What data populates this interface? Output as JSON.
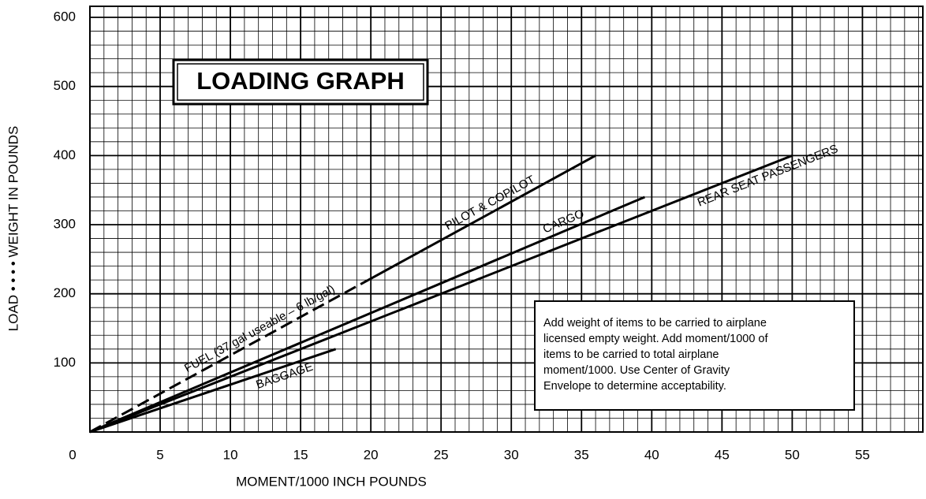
{
  "chart_data": {
    "type": "line",
    "title": "LOADING GRAPH",
    "x_label": "MOMENT/1000 INCH POUNDS",
    "y_label": "LOAD • • • • WEIGHT IN POUNDS",
    "note": [
      "Add weight of items to be carried to airplane",
      "licensed empty weight. Add moment/1000 of",
      "items to be carried to total airplane",
      "moment/1000. Use Center of Gravity",
      "Envelope to determine acceptability."
    ],
    "xlim": [
      0,
      59.3
    ],
    "ylim": [
      0,
      616
    ],
    "xticks": [
      0,
      5,
      10,
      15,
      20,
      25,
      30,
      35,
      40,
      45,
      50,
      55
    ],
    "yticks": [
      100,
      200,
      300,
      400,
      500,
      600
    ],
    "grid": true,
    "series": [
      {
        "name": "FUEL (37 gal useable – 6 lb/gal)",
        "color": "#000000",
        "dashed": true,
        "x": [
          0,
          20
        ],
        "values": [
          0,
          222
        ]
      },
      {
        "name": "PILOT & COPILOT",
        "color": "#000000",
        "dashed": false,
        "x": [
          20,
          36
        ],
        "values": [
          222,
          400
        ]
      },
      {
        "name": "CARGO",
        "color": "#000000",
        "dashed": false,
        "x": [
          0,
          39.5
        ],
        "values": [
          0,
          340
        ]
      },
      {
        "name": "REAR SEAT PASSENGERS",
        "color": "#000000",
        "dashed": false,
        "x": [
          0,
          50
        ],
        "values": [
          0,
          400
        ]
      },
      {
        "name": "BAGGAGE",
        "color": "#000000",
        "dashed": false,
        "x": [
          0,
          17.5
        ],
        "values": [
          0,
          120
        ]
      }
    ]
  }
}
